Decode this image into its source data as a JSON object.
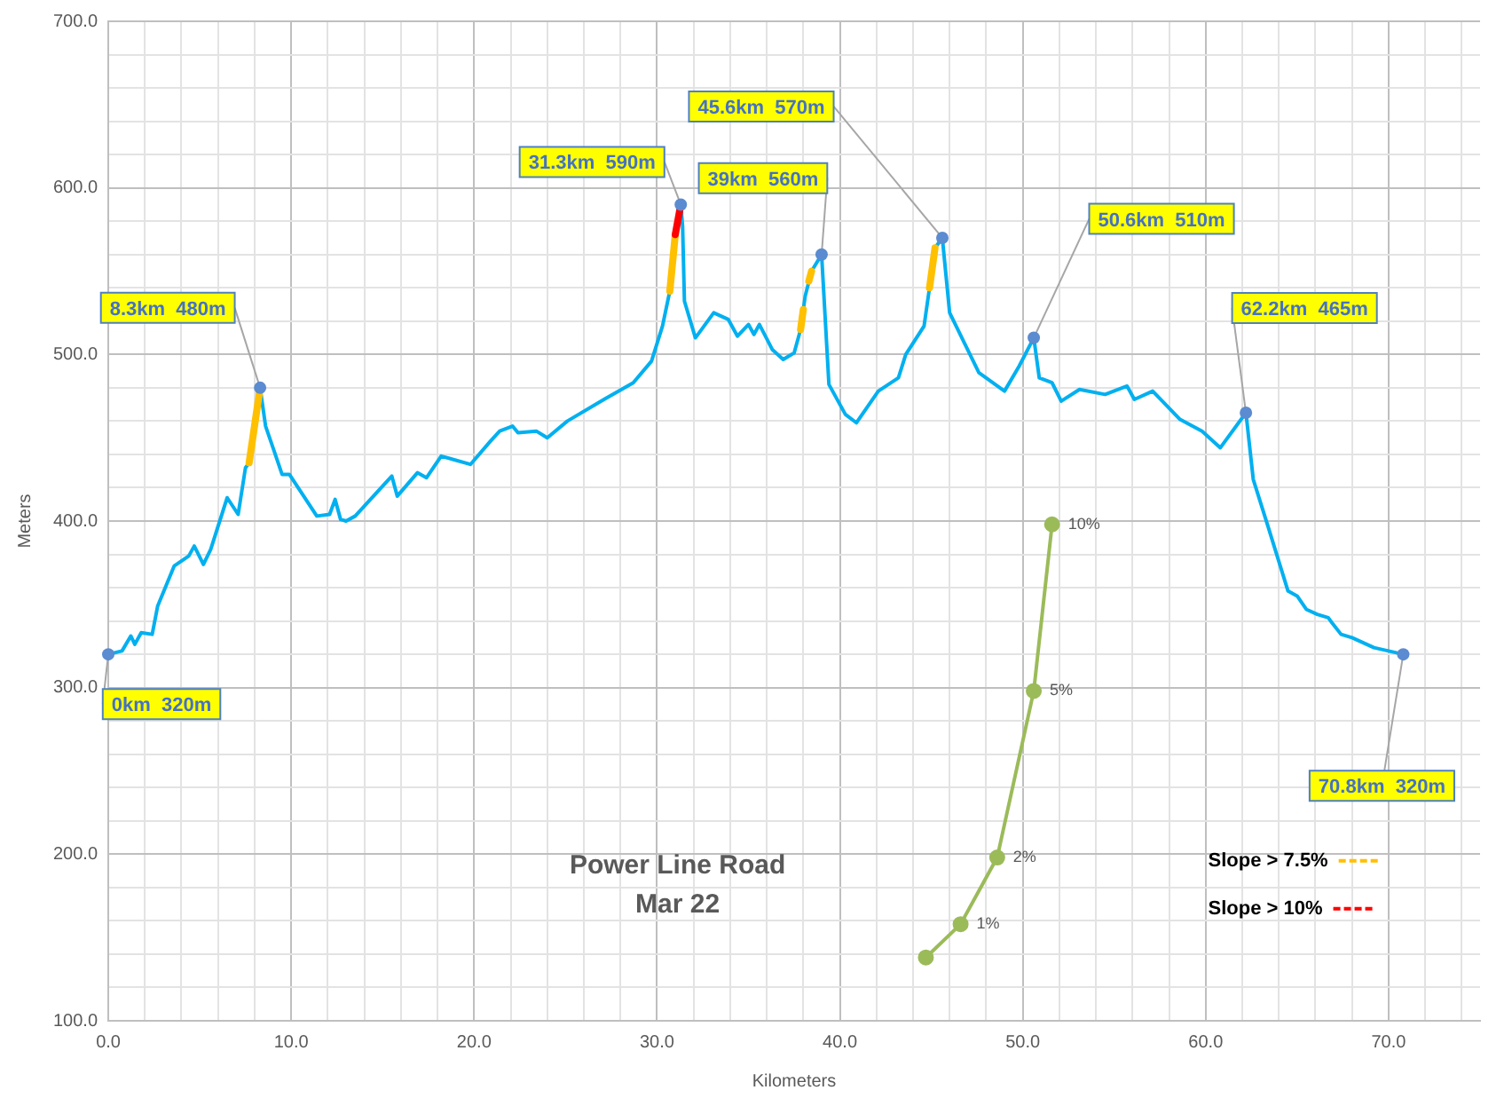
{
  "chart_data": {
    "type": "line",
    "title": "Power Line Road",
    "subtitle": "Mar 22",
    "xlabel": "Kilometers",
    "ylabel": "Meters",
    "xlim": [
      0,
      75
    ],
    "xticks": [
      {
        "value": 0,
        "label": "0.0"
      },
      {
        "value": 2,
        "label": null
      },
      {
        "value": 4,
        "label": null
      },
      {
        "value": 6,
        "label": null
      },
      {
        "value": 8,
        "label": null
      },
      {
        "value": 10,
        "label": "10.0"
      },
      {
        "value": 12,
        "label": null
      },
      {
        "value": 14,
        "label": null
      },
      {
        "value": 16,
        "label": null
      },
      {
        "value": 18,
        "label": null
      },
      {
        "value": 20,
        "label": "20.0"
      },
      {
        "value": 22,
        "label": null
      },
      {
        "value": 24,
        "label": null
      },
      {
        "value": 26,
        "label": null
      },
      {
        "value": 28,
        "label": null
      },
      {
        "value": 30,
        "label": "30.0"
      },
      {
        "value": 32,
        "label": null
      },
      {
        "value": 34,
        "label": null
      },
      {
        "value": 36,
        "label": null
      },
      {
        "value": 38,
        "label": null
      },
      {
        "value": 40,
        "label": "40.0"
      },
      {
        "value": 42,
        "label": null
      },
      {
        "value": 44,
        "label": null
      },
      {
        "value": 46,
        "label": null
      },
      {
        "value": 48,
        "label": null
      },
      {
        "value": 50,
        "label": "50.0"
      },
      {
        "value": 52,
        "label": null
      },
      {
        "value": 54,
        "label": null
      },
      {
        "value": 56,
        "label": null
      },
      {
        "value": 58,
        "label": null
      },
      {
        "value": 60,
        "label": "60.0"
      },
      {
        "value": 62,
        "label": null
      },
      {
        "value": 64,
        "label": null
      },
      {
        "value": 66,
        "label": null
      },
      {
        "value": 68,
        "label": null
      },
      {
        "value": 70,
        "label": "70.0"
      },
      {
        "value": 72,
        "label": null
      },
      {
        "value": 74,
        "label": null
      }
    ],
    "ylim": [
      100,
      700
    ],
    "yticks": [
      {
        "value": 100,
        "label": "100.0"
      },
      {
        "value": 120,
        "label": null
      },
      {
        "value": 140,
        "label": null
      },
      {
        "value": 160,
        "label": null
      },
      {
        "value": 180,
        "label": null
      },
      {
        "value": 200,
        "label": "200.0"
      },
      {
        "value": 220,
        "label": null
      },
      {
        "value": 240,
        "label": null
      },
      {
        "value": 260,
        "label": null
      },
      {
        "value": 280,
        "label": null
      },
      {
        "value": 300,
        "label": "300.0"
      },
      {
        "value": 320,
        "label": null
      },
      {
        "value": 340,
        "label": null
      },
      {
        "value": 360,
        "label": null
      },
      {
        "value": 380,
        "label": null
      },
      {
        "value": 400,
        "label": "400.0"
      },
      {
        "value": 420,
        "label": null
      },
      {
        "value": 440,
        "label": null
      },
      {
        "value": 460,
        "label": null
      },
      {
        "value": 480,
        "label": null
      },
      {
        "value": 500,
        "label": "500.0"
      },
      {
        "value": 520,
        "label": null
      },
      {
        "value": 540,
        "label": null
      },
      {
        "value": 560,
        "label": null
      },
      {
        "value": 580,
        "label": null
      },
      {
        "value": 600,
        "label": "600.0"
      },
      {
        "value": 620,
        "label": null
      },
      {
        "value": 640,
        "label": null
      },
      {
        "value": 660,
        "label": null
      },
      {
        "value": 680,
        "label": null
      },
      {
        "value": 700,
        "label": "700.0"
      }
    ],
    "grid": true,
    "legend": "bottom right",
    "series": [
      {
        "color": "#00b0f0",
        "marker": "none",
        "x": [
          0,
          0.75,
          1.23,
          1.45,
          1.8,
          2.4,
          2.7,
          3.6,
          4.4,
          4.7,
          5.2,
          5.6,
          6.5,
          7.1,
          7.5,
          7.7,
          8.3,
          8.6,
          9.1,
          9.5,
          9.9,
          11.4,
          12.1,
          12.4,
          12.7,
          13.0,
          13.5,
          15.5,
          15.8,
          16.9,
          17.4,
          18.2,
          19.8,
          20.9,
          21.4,
          22.1,
          22.4,
          23.4,
          24.0,
          25.1,
          27.1,
          28.7,
          29.7,
          30.3,
          30.7,
          31.0,
          31.3,
          31.4,
          31.5,
          32.1,
          32.5,
          33.1,
          33.9,
          34.4,
          35.0,
          35.3,
          35.6,
          36.3,
          36.9,
          37.5,
          37.85,
          38.1,
          38.45,
          39,
          39.4,
          40.3,
          40.9,
          42.1,
          43.2,
          43.6,
          44.6,
          44.9,
          45.2,
          45.6,
          46.0,
          47.6,
          49.0,
          49.8,
          50.6,
          50.9,
          51.6,
          52.1,
          53.1,
          54.5,
          55.7,
          56.1,
          57.1,
          58.6,
          59.8,
          60.8,
          62.2,
          62.6,
          63.4,
          64.5,
          65.0,
          65.5,
          66.1,
          66.7,
          66.9,
          67.4,
          68.0,
          69.2,
          70.8
        ],
        "values": [
          320,
          322,
          331,
          326,
          333,
          332,
          349,
          373,
          379,
          385,
          374,
          383,
          414,
          404,
          432,
          435,
          480,
          457,
          441,
          428,
          428,
          403,
          404,
          413,
          401,
          400,
          403,
          427,
          415,
          429,
          426,
          439,
          434,
          448,
          454,
          457,
          453,
          454,
          450,
          460,
          473,
          483,
          496,
          517,
          538,
          572,
          590,
          577,
          532,
          510,
          516,
          525,
          521,
          511,
          518,
          512,
          518,
          503,
          497,
          501,
          515,
          535,
          550,
          560,
          482,
          464,
          459,
          478,
          486,
          500,
          517,
          540,
          564,
          570,
          525,
          489,
          478,
          493,
          510,
          486,
          483,
          472,
          479,
          476,
          481,
          473,
          478,
          461,
          454,
          444,
          465,
          425,
          397,
          358,
          355,
          347,
          344,
          342,
          339,
          332,
          330,
          324,
          320
        ]
      },
      {
        "name": "Slope > 7.5%",
        "color": "#ffc000",
        "marker": "none",
        "x": [
          7.7,
          8.3,
          20,
          30.7,
          31.0,
          35,
          37.85,
          38.0,
          38.2,
          38.3,
          38.45,
          42,
          44.9,
          45.2
        ],
        "values": [
          435,
          480,
          null,
          538,
          572,
          null,
          515,
          527,
          null,
          544,
          550,
          null,
          540,
          564
        ]
      },
      {
        "name": "Slope > 10%",
        "color": "#ff0000",
        "marker": "none",
        "x": [
          31.0,
          31.3
        ],
        "values": [
          572,
          590
        ]
      },
      {
        "color": "#9bbb59",
        "marker": "circle",
        "x": [
          44.7,
          46.6,
          48.6,
          50.6,
          51.6
        ],
        "values": [
          138,
          158,
          198,
          298,
          398
        ]
      }
    ],
    "annotations": [
      {
        "text": "0km  320m",
        "x": 0,
        "y": 320
      },
      {
        "text": "8.3km  480m",
        "x": 8.3,
        "y": 480
      },
      {
        "text": "31.3km  590m",
        "x": 31.3,
        "y": 590
      },
      {
        "text": "39km  560m",
        "x": 39,
        "y": 560
      },
      {
        "text": "45.6km  570m",
        "x": 45.6,
        "y": 570
      },
      {
        "text": "50.6km  510m",
        "x": 50.6,
        "y": 510
      },
      {
        "text": "62.2km  465m",
        "x": 62.2,
        "y": 465
      },
      {
        "text": "70.8km  320m",
        "x": 70.8,
        "y": 320
      },
      {
        "text": "1%",
        "x": 46.6,
        "y": 158
      },
      {
        "text": "2%",
        "x": 48.6,
        "y": 198
      },
      {
        "text": "5%",
        "x": 50.6,
        "y": 298
      },
      {
        "text": "10%",
        "x": 51.6,
        "y": 398
      }
    ]
  }
}
